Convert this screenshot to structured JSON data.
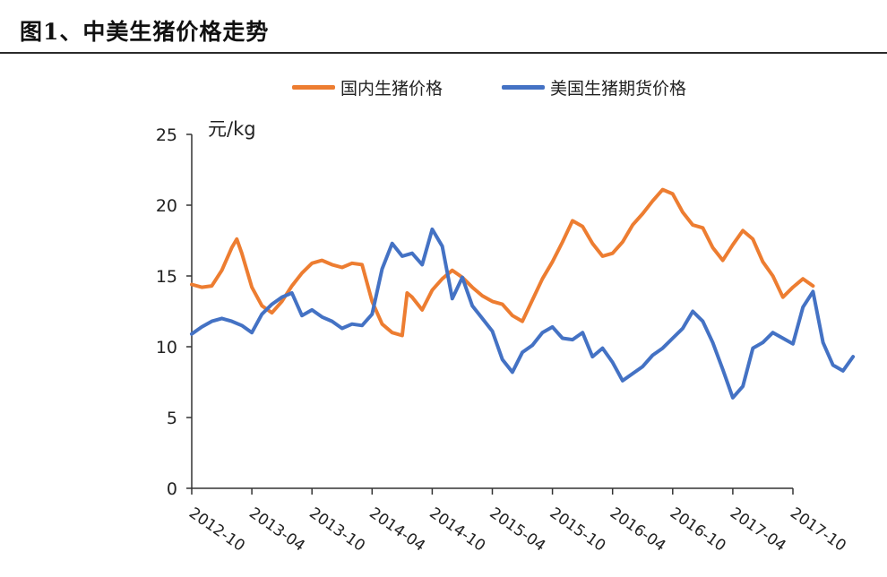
{
  "figure": {
    "title": "图1、中美生猪价格走势"
  },
  "chart_data": {
    "type": "line",
    "ylabel": "元/kg",
    "ylim": [
      0,
      25
    ],
    "yticks": [
      0,
      5,
      10,
      15,
      20,
      25
    ],
    "xticks": [
      "2012-10",
      "2013-04",
      "2013-10",
      "2014-04",
      "2014-10",
      "2015-04",
      "2015-10",
      "2016-04",
      "2016-10",
      "2017-04",
      "2017-10"
    ],
    "x_unit": "month index from 2012-10 (0) to 2017-10 (60)",
    "legend_position": "top",
    "series": [
      {
        "name": "国内生猪价格",
        "color": "#ED7D31",
        "points": [
          [
            0,
            14.4
          ],
          [
            1,
            14.2
          ],
          [
            2,
            14.3
          ],
          [
            3,
            15.4
          ],
          [
            4,
            17.0
          ],
          [
            4.5,
            17.6
          ],
          [
            5,
            16.6
          ],
          [
            6,
            14.2
          ],
          [
            7,
            12.9
          ],
          [
            8,
            12.4
          ],
          [
            9,
            13.2
          ],
          [
            10,
            14.3
          ],
          [
            11,
            15.2
          ],
          [
            12,
            15.9
          ],
          [
            13,
            16.1
          ],
          [
            14,
            15.8
          ],
          [
            15,
            15.6
          ],
          [
            16,
            15.9
          ],
          [
            17,
            15.8
          ],
          [
            18,
            13.2
          ],
          [
            19,
            11.6
          ],
          [
            20,
            11.0
          ],
          [
            21,
            10.8
          ],
          [
            21.5,
            13.8
          ],
          [
            22,
            13.5
          ],
          [
            23,
            12.6
          ],
          [
            24,
            14.0
          ],
          [
            25,
            14.8
          ],
          [
            26,
            15.4
          ],
          [
            27,
            14.9
          ],
          [
            28,
            14.2
          ],
          [
            29,
            13.6
          ],
          [
            30,
            13.2
          ],
          [
            31,
            13.0
          ],
          [
            32,
            12.2
          ],
          [
            33,
            11.8
          ],
          [
            34,
            13.3
          ],
          [
            35,
            14.8
          ],
          [
            36,
            16.0
          ],
          [
            37,
            17.4
          ],
          [
            38,
            18.9
          ],
          [
            39,
            18.5
          ],
          [
            40,
            17.3
          ],
          [
            41,
            16.4
          ],
          [
            42,
            16.6
          ],
          [
            43,
            17.4
          ],
          [
            44,
            18.6
          ],
          [
            45,
            19.4
          ],
          [
            46,
            20.3
          ],
          [
            47,
            21.1
          ],
          [
            48,
            20.8
          ],
          [
            49,
            19.5
          ],
          [
            50,
            18.6
          ],
          [
            51,
            18.4
          ],
          [
            52,
            17.0
          ],
          [
            53,
            16.1
          ],
          [
            54,
            17.2
          ],
          [
            55,
            18.2
          ],
          [
            56,
            17.6
          ],
          [
            57,
            16.0
          ],
          [
            58,
            15.0
          ],
          [
            59,
            13.5
          ],
          [
            60,
            14.2
          ],
          [
            61,
            14.8
          ],
          [
            62,
            14.3
          ]
        ]
      },
      {
        "name": "美国生猪期货价格",
        "color": "#4472C4",
        "points": [
          [
            0,
            10.9
          ],
          [
            1,
            11.4
          ],
          [
            2,
            11.8
          ],
          [
            3,
            12.0
          ],
          [
            4,
            11.8
          ],
          [
            5,
            11.5
          ],
          [
            6,
            11.0
          ],
          [
            7,
            12.3
          ],
          [
            8,
            13.0
          ],
          [
            9,
            13.5
          ],
          [
            10,
            13.8
          ],
          [
            11,
            12.2
          ],
          [
            12,
            12.6
          ],
          [
            13,
            12.1
          ],
          [
            14,
            11.8
          ],
          [
            15,
            11.3
          ],
          [
            16,
            11.6
          ],
          [
            17,
            11.5
          ],
          [
            18,
            12.3
          ],
          [
            19,
            15.5
          ],
          [
            20,
            17.3
          ],
          [
            21,
            16.4
          ],
          [
            22,
            16.6
          ],
          [
            23,
            15.8
          ],
          [
            24,
            18.3
          ],
          [
            25,
            17.1
          ],
          [
            26,
            13.4
          ],
          [
            27,
            14.9
          ],
          [
            28,
            12.9
          ],
          [
            29,
            12.0
          ],
          [
            30,
            11.1
          ],
          [
            31,
            9.1
          ],
          [
            32,
            8.2
          ],
          [
            33,
            9.6
          ],
          [
            34,
            10.1
          ],
          [
            35,
            11.0
          ],
          [
            36,
            11.4
          ],
          [
            37,
            10.6
          ],
          [
            38,
            10.5
          ],
          [
            39,
            11.0
          ],
          [
            40,
            9.3
          ],
          [
            41,
            9.9
          ],
          [
            42,
            8.9
          ],
          [
            43,
            7.6
          ],
          [
            44,
            8.1
          ],
          [
            45,
            8.6
          ],
          [
            46,
            9.4
          ],
          [
            47,
            9.9
          ],
          [
            48,
            10.6
          ],
          [
            49,
            11.3
          ],
          [
            50,
            12.5
          ],
          [
            51,
            11.8
          ],
          [
            52,
            10.3
          ],
          [
            53,
            8.4
          ],
          [
            54,
            6.4
          ],
          [
            55,
            7.2
          ],
          [
            56,
            9.9
          ],
          [
            57,
            10.3
          ],
          [
            58,
            11.0
          ],
          [
            59,
            10.6
          ],
          [
            60,
            10.2
          ],
          [
            61,
            12.8
          ],
          [
            62,
            13.9
          ],
          [
            63,
            10.3
          ],
          [
            64,
            8.7
          ],
          [
            65,
            8.3
          ],
          [
            66,
            9.3
          ]
        ]
      }
    ]
  }
}
